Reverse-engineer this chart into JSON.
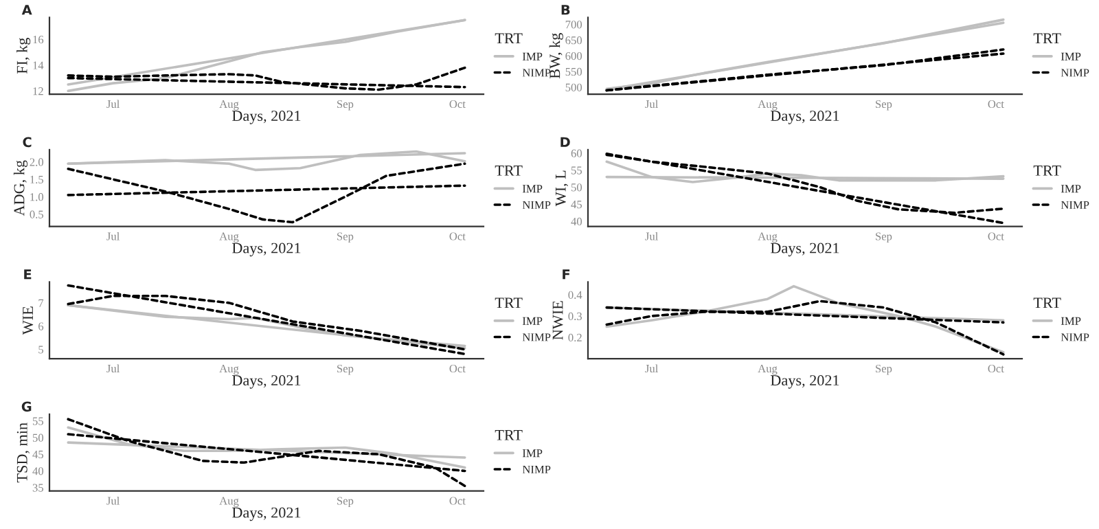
{
  "chart_data": [
    {
      "type": "line",
      "title": "A",
      "xlabel": "Days, 2021",
      "ylabel": "FI, kg",
      "legend_title": "TRT",
      "legend": "right",
      "grid": false,
      "xlim": [
        "2021-06-14",
        "2021-10-08"
      ],
      "xticks": [
        {
          "value": "2021-07-01",
          "label": "Jul"
        },
        {
          "value": "2021-08-01",
          "label": "Aug"
        },
        {
          "value": "2021-09-01",
          "label": "Sep"
        },
        {
          "value": "2021-10-01",
          "label": "Oct"
        }
      ],
      "ylim": [
        11.75,
        17.7
      ],
      "yticks": [
        12,
        14,
        16
      ],
      "series": [
        {
          "name": "IMP",
          "color": "#bfbfbf",
          "line_style": "solid",
          "x": [
            "2021-06-19",
            "2021-07-01",
            "2021-07-15",
            "2021-08-01",
            "2021-08-10",
            "2021-08-20",
            "2021-09-01",
            "2021-09-15",
            "2021-10-03"
          ],
          "values": [
            12.0,
            12.6,
            13.0,
            14.3,
            15.0,
            15.4,
            15.8,
            16.6,
            17.5
          ]
        },
        {
          "color": "#bfbfbf",
          "line_style": "solid",
          "x": [
            "2021-06-19",
            "2021-10-03"
          ],
          "values": [
            12.5,
            17.5
          ]
        },
        {
          "name": "NIMP",
          "color": "#000000",
          "line_style": "dashed",
          "x": [
            "2021-06-19",
            "2021-07-01",
            "2021-07-15",
            "2021-08-01",
            "2021-08-08",
            "2021-08-15",
            "2021-09-01",
            "2021-09-10",
            "2021-09-20",
            "2021-10-03"
          ],
          "values": [
            13.2,
            13.1,
            13.2,
            13.3,
            13.2,
            12.7,
            12.2,
            12.1,
            12.5,
            13.8
          ]
        },
        {
          "color": "#000000",
          "line_style": "dashed",
          "x": [
            "2021-06-19",
            "2021-10-03"
          ],
          "values": [
            13.0,
            12.3
          ]
        }
      ]
    },
    {
      "type": "line",
      "title": "B",
      "xlabel": "Days, 2021",
      "ylabel": "BW, kg",
      "legend_title": "TRT",
      "legend": "right",
      "grid": false,
      "xlim": [
        "2021-06-14",
        "2021-10-08"
      ],
      "xticks": [
        {
          "value": "2021-07-01",
          "label": "Jul"
        },
        {
          "value": "2021-08-01",
          "label": "Aug"
        },
        {
          "value": "2021-09-01",
          "label": "Sep"
        },
        {
          "value": "2021-10-01",
          "label": "Oct"
        }
      ],
      "ylim": [
        478,
        722
      ],
      "yticks": [
        500,
        550,
        600,
        650,
        700
      ],
      "series": [
        {
          "name": "IMP",
          "color": "#bfbfbf",
          "line_style": "solid",
          "x": [
            "2021-06-19",
            "2021-07-01",
            "2021-07-15",
            "2021-08-01",
            "2021-09-01",
            "2021-10-03"
          ],
          "values": [
            495,
            512,
            545,
            580,
            640,
            715
          ]
        },
        {
          "color": "#bfbfbf",
          "line_style": "solid",
          "x": [
            "2021-06-19",
            "2021-10-03"
          ],
          "values": [
            492,
            705
          ]
        },
        {
          "name": "NIMP",
          "color": "#000000",
          "line_style": "dashed",
          "x": [
            "2021-06-19",
            "2021-07-01",
            "2021-07-15",
            "2021-08-01",
            "2021-09-01",
            "2021-10-03"
          ],
          "values": [
            490,
            505,
            520,
            540,
            570,
            620
          ]
        },
        {
          "color": "#000000",
          "line_style": "dashed",
          "x": [
            "2021-06-19",
            "2021-10-03"
          ],
          "values": [
            490,
            607
          ]
        }
      ]
    },
    {
      "type": "line",
      "title": "C",
      "xlabel": "Days, 2021",
      "ylabel": "ADG, kg",
      "legend_title": "TRT",
      "legend": "right",
      "grid": false,
      "xlim": [
        "2021-06-14",
        "2021-10-08"
      ],
      "xticks": [
        {
          "value": "2021-07-01",
          "label": "Jul"
        },
        {
          "value": "2021-08-01",
          "label": "Aug"
        },
        {
          "value": "2021-09-01",
          "label": "Sep"
        },
        {
          "value": "2021-10-01",
          "label": "Oct"
        }
      ],
      "ylim": [
        0.15,
        2.35
      ],
      "yticks": [
        0.5,
        {
          "value": 1.0,
          "label": "1.0"
        },
        1.5,
        {
          "value": 2.0,
          "label": "2.0"
        }
      ],
      "series": [
        {
          "name": "IMP",
          "color": "#bfbfbf",
          "line_style": "solid",
          "x": [
            "2021-06-19",
            "2021-07-15",
            "2021-08-01",
            "2021-08-08",
            "2021-08-20",
            "2021-09-05",
            "2021-09-20",
            "2021-10-03"
          ],
          "values": [
            1.95,
            2.05,
            1.95,
            1.77,
            1.82,
            2.2,
            2.3,
            2.02
          ]
        },
        {
          "color": "#bfbfbf",
          "line_style": "solid",
          "x": [
            "2021-06-19",
            "2021-10-03"
          ],
          "values": [
            1.95,
            2.25
          ]
        },
        {
          "name": "NIMP",
          "color": "#000000",
          "line_style": "dashed",
          "x": [
            "2021-06-19",
            "2021-07-01",
            "2021-07-15",
            "2021-08-01",
            "2021-08-10",
            "2021-08-18",
            "2021-09-01",
            "2021-09-12",
            "2021-10-03"
          ],
          "values": [
            1.8,
            1.5,
            1.15,
            0.65,
            0.35,
            0.27,
            1.0,
            1.6,
            1.95
          ]
        },
        {
          "color": "#000000",
          "line_style": "dashed",
          "x": [
            "2021-06-19",
            "2021-10-03"
          ],
          "values": [
            1.05,
            1.32
          ]
        }
      ]
    },
    {
      "type": "line",
      "title": "D",
      "xlabel": "Days, 2021",
      "ylabel": "WI, L",
      "legend_title": "TRT",
      "legend": "right",
      "grid": false,
      "xlim": [
        "2021-06-14",
        "2021-10-08"
      ],
      "xticks": [
        {
          "value": "2021-07-01",
          "label": "Jul"
        },
        {
          "value": "2021-08-01",
          "label": "Aug"
        },
        {
          "value": "2021-09-01",
          "label": "Sep"
        },
        {
          "value": "2021-10-01",
          "label": "Oct"
        }
      ],
      "ylim": [
        38.5,
        61
      ],
      "yticks": [
        40,
        45,
        50,
        55,
        60
      ],
      "series": [
        {
          "name": "IMP",
          "color": "#bfbfbf",
          "line_style": "solid",
          "x": [
            "2021-06-19",
            "2021-07-01",
            "2021-07-12",
            "2021-07-25",
            "2021-08-01",
            "2021-08-10",
            "2021-08-20",
            "2021-09-15",
            "2021-10-03"
          ],
          "values": [
            57.5,
            53,
            51.5,
            53,
            54,
            53.5,
            52,
            52,
            53.2
          ]
        },
        {
          "color": "#bfbfbf",
          "line_style": "solid",
          "x": [
            "2021-06-19",
            "2021-10-03"
          ],
          "values": [
            53,
            52.5
          ]
        },
        {
          "name": "NIMP",
          "color": "#000000",
          "line_style": "dashed",
          "x": [
            "2021-06-19",
            "2021-07-01",
            "2021-07-15",
            "2021-08-01",
            "2021-08-15",
            "2021-08-25",
            "2021-09-05",
            "2021-09-20",
            "2021-10-03"
          ],
          "values": [
            59.5,
            57.5,
            56,
            54,
            50,
            46,
            43.5,
            42.5,
            43.7
          ]
        },
        {
          "color": "#000000",
          "line_style": "dashed",
          "x": [
            "2021-06-19",
            "2021-10-03"
          ],
          "values": [
            59.8,
            39.5
          ]
        }
      ]
    },
    {
      "type": "line",
      "title": "E",
      "xlabel": "Days, 2021",
      "ylabel": "WIE",
      "legend_title": "TRT",
      "legend": "right",
      "grid": false,
      "xlim": [
        "2021-06-14",
        "2021-10-08"
      ],
      "xticks": [
        {
          "value": "2021-07-01",
          "label": "Jul"
        },
        {
          "value": "2021-08-01",
          "label": "Aug"
        },
        {
          "value": "2021-09-01",
          "label": "Sep"
        },
        {
          "value": "2021-10-01",
          "label": "Oct"
        }
      ],
      "ylim": [
        4.6,
        7.9
      ],
      "yticks": [
        5,
        6,
        7
      ],
      "series": [
        {
          "name": "IMP",
          "color": "#bfbfbf",
          "line_style": "solid",
          "x": [
            "2021-06-19",
            "2021-07-15",
            "2021-08-01",
            "2021-08-08",
            "2021-08-20",
            "2021-09-01",
            "2021-10-03"
          ],
          "values": [
            6.9,
            6.4,
            6.3,
            6.35,
            5.95,
            5.6,
            5.15
          ]
        },
        {
          "color": "#bfbfbf",
          "line_style": "solid",
          "x": [
            "2021-06-19",
            "2021-10-03"
          ],
          "values": [
            6.9,
            5.05
          ]
        },
        {
          "name": "NIMP",
          "color": "#000000",
          "line_style": "dashed",
          "x": [
            "2021-06-19",
            "2021-07-01",
            "2021-07-15",
            "2021-08-01",
            "2021-08-18",
            "2021-09-05",
            "2021-10-03"
          ],
          "values": [
            6.95,
            7.3,
            7.3,
            7.0,
            6.2,
            5.8,
            5.0
          ]
        },
        {
          "color": "#000000",
          "line_style": "dashed",
          "x": [
            "2021-06-19",
            "2021-10-03"
          ],
          "values": [
            7.75,
            4.8
          ]
        }
      ]
    },
    {
      "type": "line",
      "title": "F",
      "xlabel": "Days, 2021",
      "ylabel": "NWIE",
      "legend_title": "TRT",
      "legend": "right",
      "grid": false,
      "xlim": [
        "2021-06-14",
        "2021-10-08"
      ],
      "xticks": [
        {
          "value": "2021-07-01",
          "label": "Jul"
        },
        {
          "value": "2021-08-01",
          "label": "Aug"
        },
        {
          "value": "2021-09-01",
          "label": "Sep"
        },
        {
          "value": "2021-10-01",
          "label": "Oct"
        }
      ],
      "ylim": [
        0.1,
        0.46
      ],
      "yticks": [
        0.2,
        0.3,
        0.4
      ],
      "series": [
        {
          "name": "IMP",
          "color": "#bfbfbf",
          "line_style": "solid",
          "x": [
            "2021-06-19",
            "2021-07-01",
            "2021-07-15",
            "2021-08-01",
            "2021-08-08",
            "2021-08-20",
            "2021-09-05",
            "2021-09-15",
            "2021-10-03"
          ],
          "values": [
            0.25,
            0.28,
            0.32,
            0.38,
            0.44,
            0.36,
            0.3,
            0.25,
            0.13
          ]
        },
        {
          "color": "#bfbfbf",
          "line_style": "solid",
          "x": [
            "2021-06-19",
            "2021-10-03"
          ],
          "values": [
            0.34,
            0.28
          ]
        },
        {
          "name": "NIMP",
          "color": "#000000",
          "line_style": "dashed",
          "x": [
            "2021-06-19",
            "2021-07-01",
            "2021-07-15",
            "2021-08-01",
            "2021-08-15",
            "2021-09-01",
            "2021-09-15",
            "2021-10-03"
          ],
          "values": [
            0.26,
            0.3,
            0.32,
            0.32,
            0.37,
            0.34,
            0.27,
            0.12
          ]
        },
        {
          "color": "#000000",
          "line_style": "dashed",
          "x": [
            "2021-06-19",
            "2021-10-03"
          ],
          "values": [
            0.34,
            0.27
          ]
        }
      ]
    },
    {
      "type": "line",
      "title": "G",
      "xlabel": "Days, 2021",
      "ylabel": "TSD, min",
      "legend_title": "TRT",
      "legend": "right",
      "grid": false,
      "xlim": [
        "2021-06-14",
        "2021-10-08"
      ],
      "xticks": [
        {
          "value": "2021-07-01",
          "label": "Jul"
        },
        {
          "value": "2021-08-01",
          "label": "Aug"
        },
        {
          "value": "2021-09-01",
          "label": "Sep"
        },
        {
          "value": "2021-10-01",
          "label": "Oct"
        }
      ],
      "ylim": [
        34,
        57
      ],
      "yticks": [
        35,
        40,
        45,
        50,
        55
      ],
      "series": [
        {
          "name": "IMP",
          "color": "#bfbfbf",
          "line_style": "solid",
          "x": [
            "2021-06-19",
            "2021-07-05",
            "2021-07-20",
            "2021-08-01",
            "2021-08-15",
            "2021-09-01",
            "2021-09-15",
            "2021-10-03"
          ],
          "values": [
            53,
            48,
            46,
            46,
            46.5,
            47,
            45,
            41
          ]
        },
        {
          "color": "#bfbfbf",
          "line_style": "solid",
          "x": [
            "2021-06-19",
            "2021-10-03"
          ],
          "values": [
            48.5,
            44
          ]
        },
        {
          "name": "NIMP",
          "color": "#000000",
          "line_style": "dashed",
          "x": [
            "2021-06-19",
            "2021-07-05",
            "2021-07-25",
            "2021-08-05",
            "2021-08-25",
            "2021-09-10",
            "2021-09-25",
            "2021-10-03"
          ],
          "values": [
            55.5,
            49,
            43,
            42.5,
            46,
            45,
            41,
            35.5
          ]
        },
        {
          "color": "#000000",
          "line_style": "dashed",
          "x": [
            "2021-06-19",
            "2021-10-03"
          ],
          "values": [
            51,
            40
          ]
        }
      ]
    }
  ]
}
